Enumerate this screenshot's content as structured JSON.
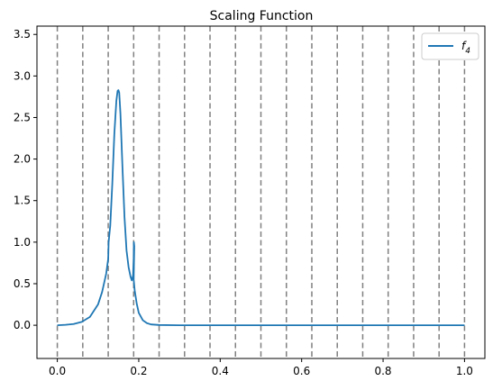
{
  "chart_data": {
    "type": "line",
    "title": "Scaling Function",
    "xlabel": "",
    "ylabel": "",
    "xlim": [
      -0.05,
      1.05
    ],
    "ylim": [
      -0.4,
      3.6
    ],
    "x_ticks": [
      "0.0",
      "0.2",
      "0.4",
      "0.6",
      "0.8",
      "1.0"
    ],
    "x_tick_values": [
      0.0,
      0.2,
      0.4,
      0.6,
      0.8,
      1.0
    ],
    "y_ticks": [
      "0.0",
      "0.5",
      "1.0",
      "1.5",
      "2.0",
      "2.5",
      "3.0",
      "3.5"
    ],
    "y_tick_values": [
      0.0,
      0.5,
      1.0,
      1.5,
      2.0,
      2.5,
      3.0,
      3.5
    ],
    "vlines": [
      0.0,
      0.0625,
      0.125,
      0.1875,
      0.25,
      0.3125,
      0.375,
      0.4375,
      0.5,
      0.5625,
      0.625,
      0.6875,
      0.75,
      0.8125,
      0.875,
      0.9375,
      1.0
    ],
    "vline_color": "#808080",
    "legend": {
      "placement": "top-right",
      "label": "f",
      "subscript": "4"
    },
    "series": [
      {
        "name": "f4",
        "color": "#1f77b4",
        "x": [
          0.0,
          0.02,
          0.04,
          0.06,
          0.08,
          0.1,
          0.11,
          0.12,
          0.125,
          0.126,
          0.13,
          0.135,
          0.14,
          0.145,
          0.148,
          0.15,
          0.152,
          0.155,
          0.16,
          0.165,
          0.17,
          0.175,
          0.18,
          0.183,
          0.186,
          0.1875,
          0.188,
          0.189,
          0.1875,
          0.19,
          0.195,
          0.2,
          0.21,
          0.22,
          0.23,
          0.25,
          0.3,
          0.4,
          0.5,
          0.6,
          0.7,
          0.8,
          0.9,
          1.0
        ],
        "y": [
          0.0,
          0.005,
          0.015,
          0.04,
          0.1,
          0.25,
          0.4,
          0.62,
          0.8,
          1.0,
          1.2,
          1.7,
          2.3,
          2.7,
          2.82,
          2.83,
          2.8,
          2.55,
          1.9,
          1.3,
          0.9,
          0.7,
          0.58,
          0.54,
          0.6,
          0.8,
          1.0,
          0.95,
          0.55,
          0.42,
          0.26,
          0.15,
          0.06,
          0.025,
          0.01,
          0.003,
          0.0,
          0.0,
          0.0,
          0.0,
          0.0,
          0.0,
          0.0,
          0.0
        ]
      }
    ]
  }
}
